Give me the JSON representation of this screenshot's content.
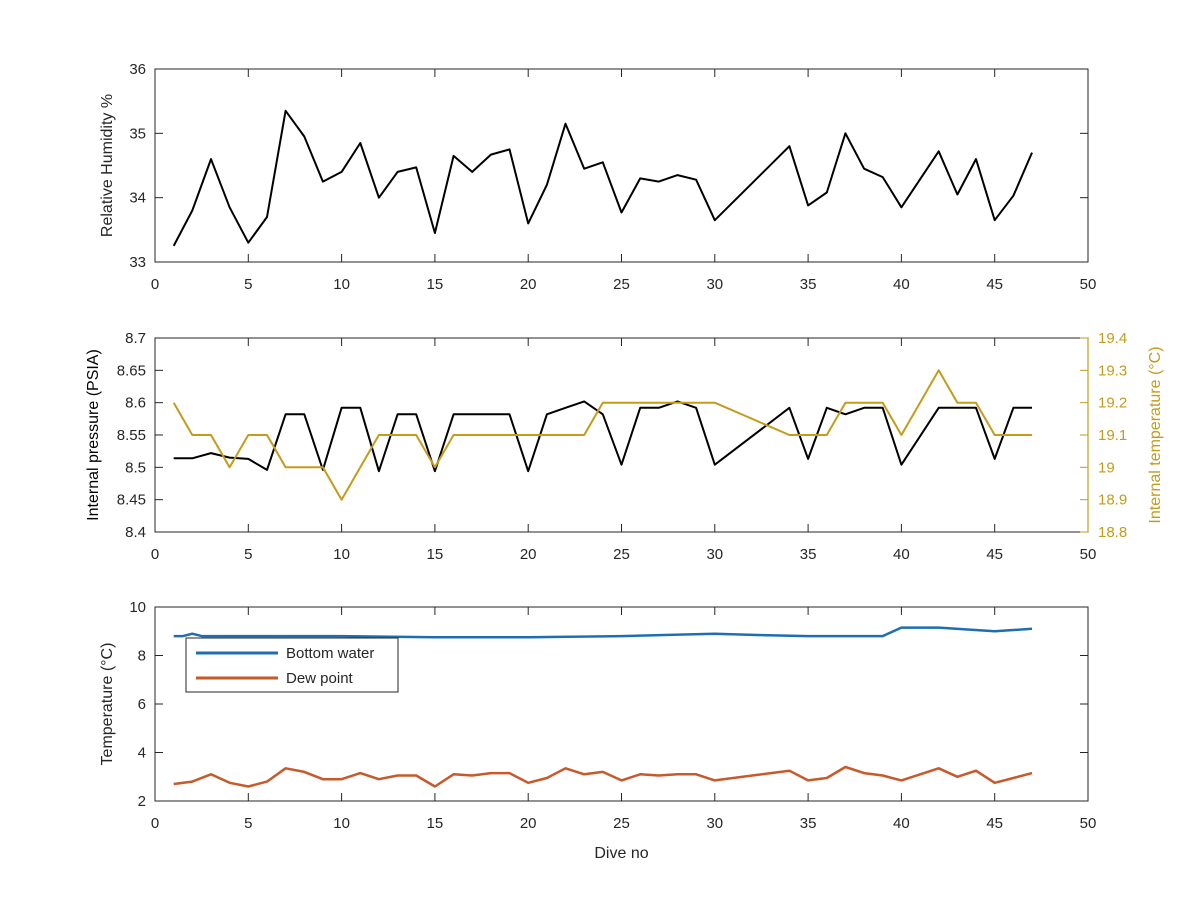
{
  "colors": {
    "axis": "#262626",
    "black_series": "#000000",
    "gold": "#C59B1C",
    "blue": "#1F6FB0",
    "orange": "#C65A2A"
  },
  "chart_data": [
    {
      "type": "line",
      "xlabel": "",
      "ylabel": "Relative Humidity %",
      "xlim": [
        0,
        50
      ],
      "ylim": [
        33,
        36
      ],
      "xticks": [
        0,
        5,
        10,
        15,
        20,
        25,
        30,
        35,
        40,
        45,
        50
      ],
      "yticks": [
        33,
        34,
        35,
        36
      ],
      "x": [
        1,
        2,
        3,
        4,
        5,
        6,
        7,
        8,
        9,
        10,
        11,
        12,
        13,
        14,
        15,
        16,
        17,
        18,
        19,
        20,
        21,
        22,
        23,
        24,
        25,
        26,
        27,
        28,
        29,
        30,
        34,
        35,
        36,
        37,
        38,
        39,
        40,
        42,
        43,
        44,
        45,
        46,
        47
      ],
      "series": [
        {
          "color": "#000000",
          "values": [
            33.25,
            33.8,
            34.6,
            33.85,
            33.3,
            33.7,
            35.35,
            34.95,
            34.25,
            34.4,
            34.85,
            34.0,
            34.4,
            34.47,
            33.45,
            34.65,
            34.4,
            34.67,
            34.75,
            33.6,
            34.2,
            35.15,
            34.45,
            34.55,
            33.77,
            34.3,
            34.25,
            34.35,
            34.28,
            33.65,
            34.8,
            33.88,
            34.08,
            35.0,
            34.45,
            34.32,
            33.85,
            34.72,
            34.05,
            34.6,
            33.65,
            34.03,
            34.7
          ]
        }
      ]
    },
    {
      "type": "line",
      "xlabel": "",
      "ylabel": "Internal pressure (PSIA)",
      "ylabel_right": "Internal temperature (°C)",
      "xlim": [
        0,
        50
      ],
      "ylim": [
        8.4,
        8.7
      ],
      "ylim_right": [
        18.8,
        19.4
      ],
      "xticks": [
        0,
        5,
        10,
        15,
        20,
        25,
        30,
        35,
        40,
        45,
        50
      ],
      "yticks": [
        "8.4",
        "8.45",
        "8.5",
        "8.55",
        "8.6",
        "8.65",
        "8.7"
      ],
      "yticks_right": [
        "18.8",
        "18.9",
        "19",
        "19.1",
        "19.2",
        "19.3",
        "19.4"
      ],
      "series": [
        {
          "axis": "left",
          "color": "#000000",
          "x": [
            1,
            2,
            3,
            4,
            5,
            6,
            7,
            8,
            9,
            10,
            11,
            12,
            13,
            14,
            15,
            16,
            17,
            18,
            19,
            20,
            21,
            22,
            23,
            24,
            25,
            26,
            27,
            28,
            29,
            30,
            34,
            35,
            36,
            37,
            38,
            39,
            40,
            42,
            43,
            44,
            45,
            46,
            47
          ],
          "values": [
            8.514,
            8.514,
            8.522,
            8.515,
            8.513,
            8.496,
            8.582,
            8.582,
            8.496,
            8.592,
            8.592,
            8.494,
            8.582,
            8.582,
            8.494,
            8.582,
            8.582,
            8.582,
            8.582,
            8.494,
            8.582,
            8.592,
            8.602,
            8.582,
            8.504,
            8.592,
            8.592,
            8.602,
            8.592,
            8.504,
            8.592,
            8.513,
            8.592,
            8.582,
            8.592,
            8.592,
            8.504,
            8.592,
            8.592,
            8.592,
            8.513,
            8.592,
            8.592
          ]
        },
        {
          "axis": "right",
          "color": "#C59B1C",
          "x": [
            1,
            2,
            3,
            4,
            5,
            6,
            7,
            8,
            9,
            10,
            11,
            12,
            13,
            14,
            15,
            16,
            17,
            18,
            19,
            20,
            21,
            22,
            23,
            24,
            25,
            26,
            27,
            28,
            29,
            30,
            34,
            35,
            36,
            37,
            38,
            39,
            40,
            42,
            43,
            44,
            45,
            46,
            47
          ],
          "values": [
            19.2,
            19.1,
            19.1,
            19.0,
            19.1,
            19.1,
            19.0,
            19.0,
            19.0,
            18.9,
            19.0,
            19.1,
            19.1,
            19.1,
            19.0,
            19.1,
            19.1,
            19.1,
            19.1,
            19.1,
            19.1,
            19.1,
            19.1,
            19.2,
            19.2,
            19.2,
            19.2,
            19.2,
            19.2,
            19.2,
            19.1,
            19.1,
            19.1,
            19.2,
            19.2,
            19.2,
            19.1,
            19.3,
            19.2,
            19.2,
            19.1,
            19.1,
            19.1
          ]
        }
      ]
    },
    {
      "type": "line",
      "xlabel": "Dive no",
      "ylabel": "Temperature (°C)",
      "xlim": [
        0,
        50
      ],
      "ylim": [
        2,
        10
      ],
      "xticks": [
        0,
        5,
        10,
        15,
        20,
        25,
        30,
        35,
        40,
        45,
        50
      ],
      "yticks": [
        2,
        4,
        6,
        8,
        10
      ],
      "legend_position": "upper-left",
      "series": [
        {
          "name": "Bottom water",
          "color": "#1F6FB0",
          "x": [
            1,
            1.5,
            2,
            2.5,
            3,
            5,
            10,
            15,
            20,
            25,
            30,
            32,
            35,
            39,
            40,
            42,
            45,
            46,
            47
          ],
          "values": [
            8.8,
            8.8,
            8.9,
            8.8,
            8.8,
            8.8,
            8.8,
            8.75,
            8.75,
            8.8,
            8.9,
            8.85,
            8.8,
            8.8,
            9.15,
            9.15,
            9.0,
            9.05,
            9.1
          ]
        },
        {
          "name": "Dew point",
          "color": "#C65A2A",
          "x": [
            1,
            2,
            3,
            4,
            5,
            6,
            7,
            8,
            9,
            10,
            11,
            12,
            13,
            14,
            15,
            16,
            17,
            18,
            19,
            20,
            21,
            22,
            23,
            24,
            25,
            26,
            27,
            28,
            29,
            30,
            34,
            35,
            36,
            37,
            38,
            39,
            40,
            42,
            43,
            44,
            45,
            46,
            47
          ],
          "values": [
            2.7,
            2.8,
            3.1,
            2.75,
            2.6,
            2.8,
            3.35,
            3.2,
            2.9,
            2.9,
            3.15,
            2.9,
            3.05,
            3.05,
            2.6,
            3.1,
            3.05,
            3.15,
            3.15,
            2.75,
            2.95,
            3.35,
            3.1,
            3.2,
            2.85,
            3.1,
            3.05,
            3.1,
            3.1,
            2.85,
            3.25,
            2.85,
            2.95,
            3.4,
            3.15,
            3.05,
            2.85,
            3.35,
            3.0,
            3.25,
            2.75,
            2.95,
            3.15
          ]
        }
      ]
    }
  ]
}
